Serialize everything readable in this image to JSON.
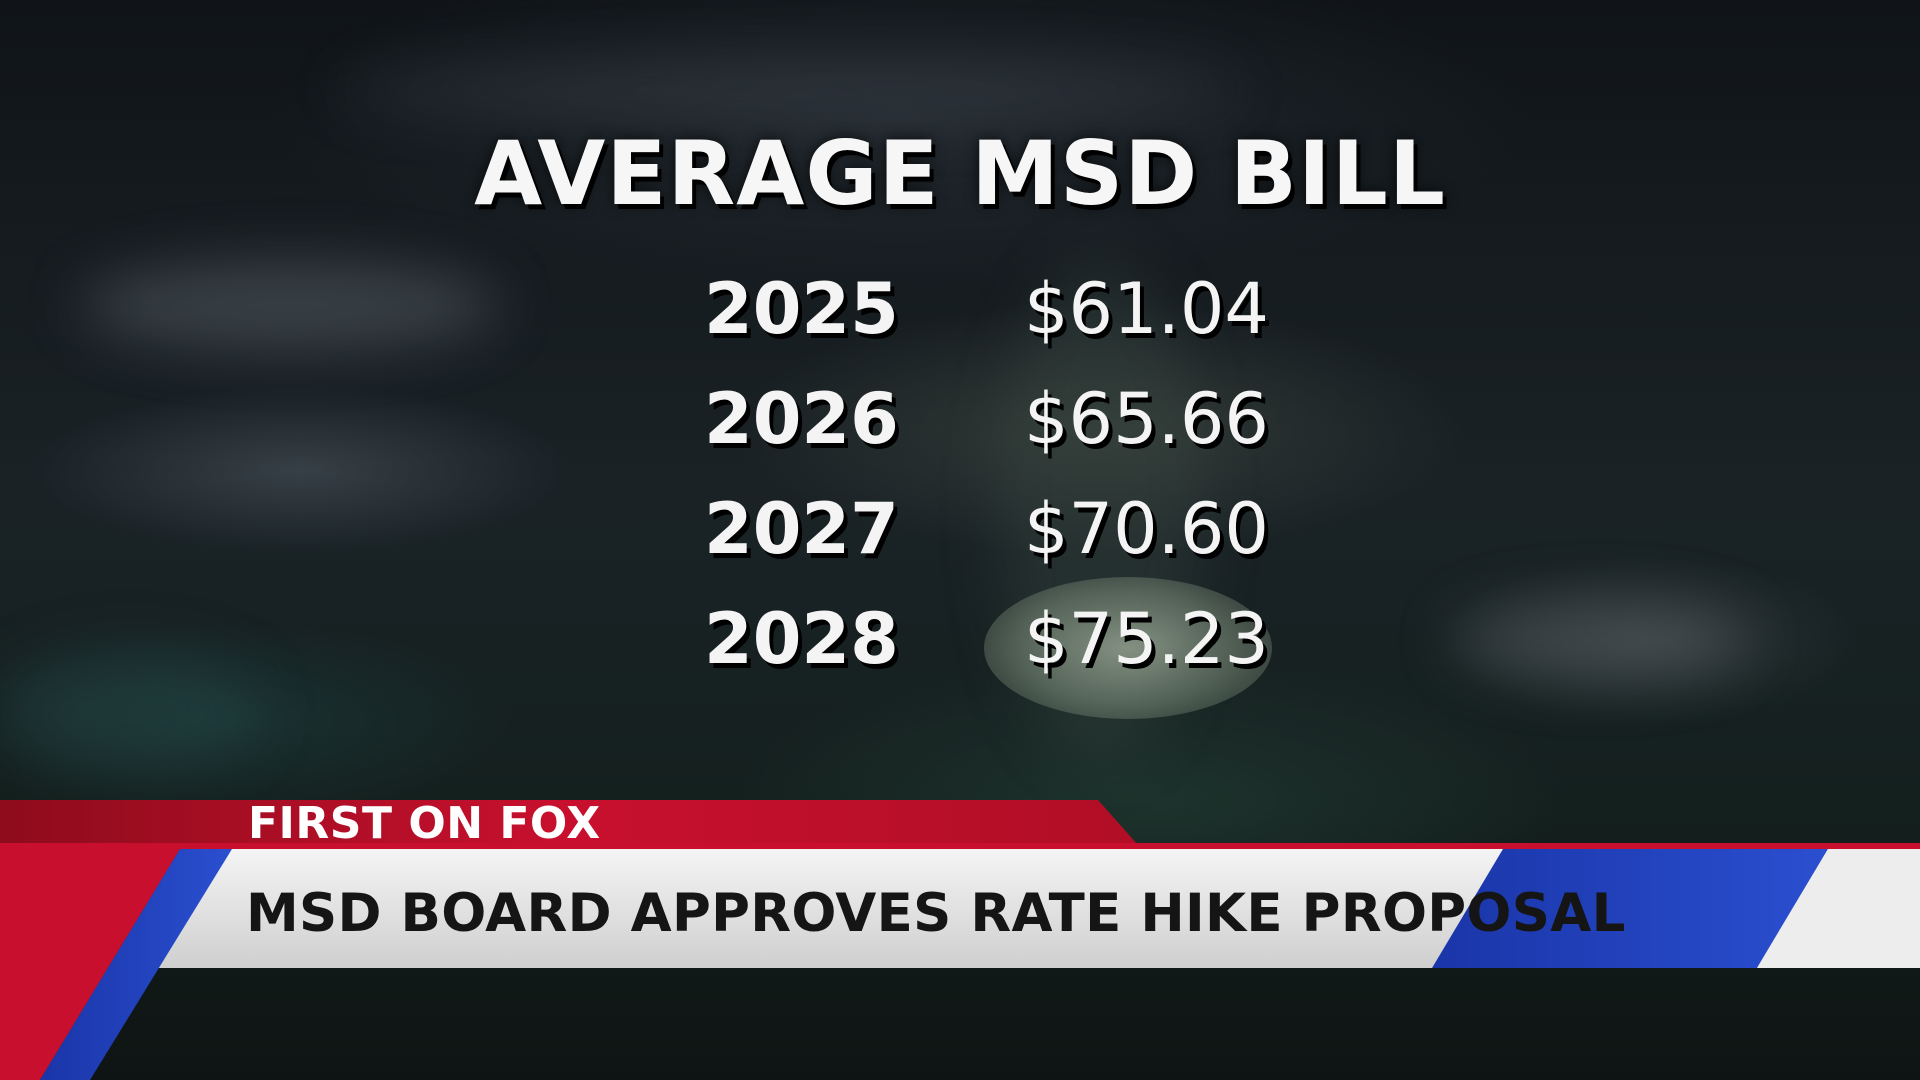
{
  "graphic": {
    "title": "AVERAGE MSD BILL",
    "rows": [
      {
        "year": "2025",
        "amount": "$61.04"
      },
      {
        "year": "2026",
        "amount": "$65.66"
      },
      {
        "year": "2027",
        "amount": "$70.60"
      },
      {
        "year": "2028",
        "amount": "$75.23"
      }
    ],
    "highlighted_row": 3
  },
  "lower_third": {
    "label": "FIRST ON FOX",
    "headline": "MSD BOARD APPROVES RATE HIKE PROPOSAL"
  },
  "colors": {
    "red": "#c8102e",
    "blue": "#1f3fb8",
    "banner": "#e4e4e4"
  }
}
